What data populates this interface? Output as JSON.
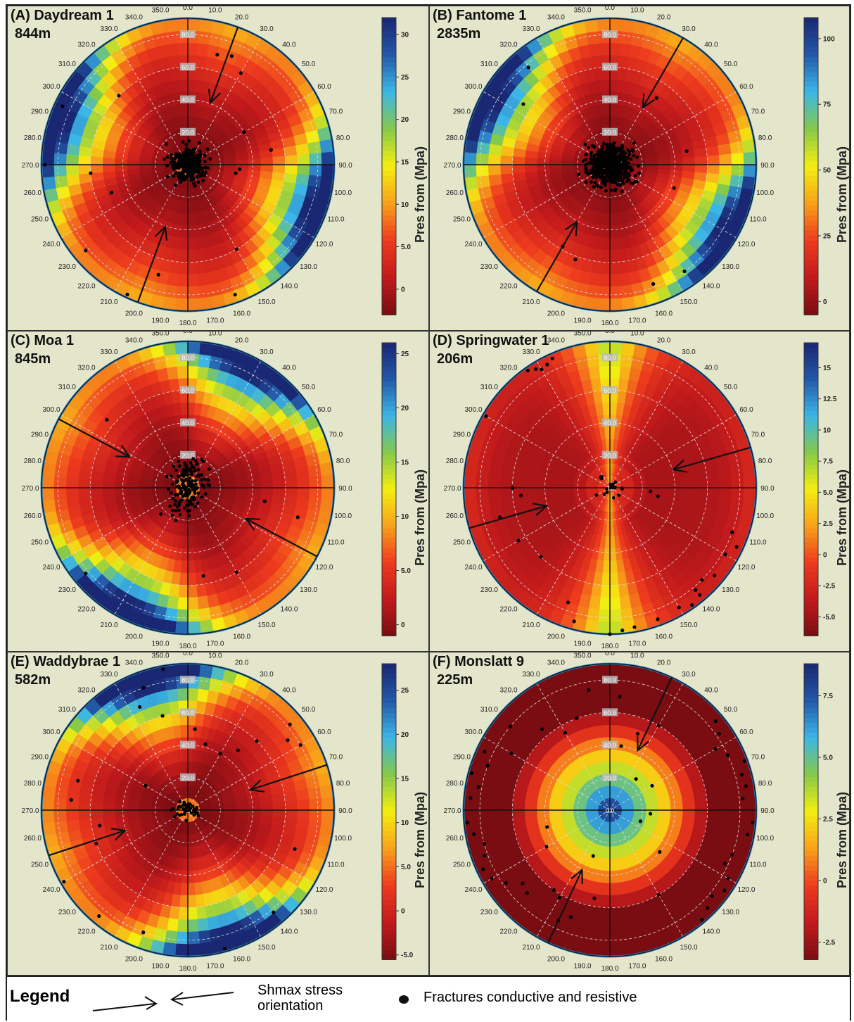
{
  "legend": {
    "title": "Legend",
    "arrow_label": "Shmax stress orientation",
    "dot_label": "Fractures conductive and resistive"
  },
  "colormap": [
    "#7a0d12",
    "#c21a1c",
    "#ee3b1e",
    "#f8a21a",
    "#f4ee10",
    "#86c94a",
    "#3cb6e6",
    "#2358a8",
    "#1a2772"
  ],
  "chart_data": [
    {
      "type": "polar-heatmap",
      "title": "(A) Daydream 1",
      "depth": "844m",
      "colorbar_label": "Pres from (Mpa)",
      "colorbar_ticks": [
        "30",
        "25",
        "20",
        "15",
        "10",
        "5.0",
        "0"
      ],
      "colorbar_range": [
        -3,
        32
      ],
      "radial_labels": [
        "20.0",
        "40.0",
        "60.0",
        "80.0"
      ],
      "azimuth_labels": [
        "0.0",
        "10.0",
        "20.0",
        "30.0",
        "40.0",
        "50.0",
        "60.0",
        "70.0",
        "80.0",
        "90.0",
        "100.0",
        "110.0",
        "120.0",
        "130.0",
        "140.0",
        "150.0",
        "160.0",
        "170.0",
        "180.0",
        "190.0",
        "200.0",
        "210.0",
        "220.0",
        "230.0",
        "240.0",
        "250.0",
        "260.0",
        "270.0",
        "280.0",
        "290.0",
        "300.0",
        "310.0",
        "320.0",
        "330.0",
        "340.0",
        "350.0"
      ],
      "center_label": "0.0",
      "shmax_azimuth": 20,
      "pattern": "bilobe",
      "field_axis": 20,
      "fractures": {
        "cluster_count": 320,
        "cluster_spread": 24,
        "cluster_azimuth_bias": null,
        "scattered": [
          [
            15,
            70
          ],
          [
            22,
            72
          ],
          [
            30,
            65
          ],
          [
            60,
            40
          ],
          [
            80,
            52
          ],
          [
            95,
            32
          ],
          [
            100,
            30
          ],
          [
            150,
            60
          ],
          [
            160,
            85
          ],
          [
            195,
            70
          ],
          [
            205,
            88
          ],
          [
            230,
            82
          ],
          [
            250,
            50
          ],
          [
            265,
            60
          ],
          [
            270,
            88
          ],
          [
            295,
            85
          ],
          [
            290,
            10
          ],
          [
            315,
            60
          ]
        ]
      }
    },
    {
      "type": "polar-heatmap",
      "title": "(B) Fantome 1",
      "depth": "2835m",
      "colorbar_label": "Pres from (Mpa)",
      "colorbar_ticks": [
        "100",
        "75",
        "50",
        "25",
        "0"
      ],
      "colorbar_range": [
        -5,
        108
      ],
      "radial_labels": [
        "20.0",
        "40.0",
        "60.0",
        "80.0"
      ],
      "azimuth_labels": [
        "0.0",
        "10.0",
        "20.0",
        "30.0",
        "40.0",
        "50.0",
        "60.0",
        "70.0",
        "80.0",
        "90.0",
        "100.0",
        "110.0",
        "120.0",
        "130.0",
        "140.0",
        "150.0",
        "160.0",
        "170.0",
        "180.0",
        "190.0",
        "200.0",
        "210.0",
        "220.0",
        "230.0",
        "240.0",
        "250.0",
        "260.0",
        "270.0",
        "280.0",
        "290.0",
        "300.0",
        "310.0",
        "320.0",
        "330.0",
        "340.0",
        "350.0"
      ],
      "center_label": "0.0",
      "shmax_azimuth": 30,
      "pattern": "bilobe",
      "field_axis": 30,
      "fractures": {
        "cluster_count": 560,
        "cluster_spread": 30,
        "cluster_azimuth_bias": null,
        "scattered": [
          [
            305,
            65
          ],
          [
            320,
            78
          ],
          [
            80,
            48
          ],
          [
            110,
            42
          ],
          [
            145,
            80
          ],
          [
            160,
            78
          ],
          [
            200,
            62
          ],
          [
            210,
            58
          ],
          [
            35,
            50
          ]
        ]
      }
    },
    {
      "type": "polar-heatmap",
      "title": "(C) Moa 1",
      "depth": "845m",
      "colorbar_label": "Pres from (Mpa)",
      "colorbar_ticks": [
        "25",
        "20",
        "15",
        "10",
        "5.0",
        "0"
      ],
      "colorbar_range": [
        -1,
        26
      ],
      "radial_labels": [
        "20.0",
        "40.0",
        "60.0",
        "80.0"
      ],
      "azimuth_labels": [
        "0.0",
        "10.0",
        "20.0",
        "30.0",
        "40.0",
        "50.0",
        "60.0",
        "70.0",
        "80.0",
        "90.0",
        "100.0",
        "110.0",
        "120.0",
        "130.0",
        "140.0",
        "150.0",
        "160.0",
        "170.0",
        "180.0",
        "190.0",
        "200.0",
        "210.0",
        "220.0",
        "230.0",
        "240.0",
        "250.0",
        "260.0",
        "270.0",
        "280.0",
        "290.0",
        "300.0",
        "310.0",
        "320.0",
        "330.0",
        "340.0",
        "350.0"
      ],
      "center_label": "0.0",
      "shmax_azimuth": 118,
      "pattern": "bilobe",
      "field_axis": 118,
      "fractures": {
        "cluster_count": 150,
        "cluster_spread": 40,
        "cluster_azimuth_bias": 28,
        "scattered": [
          [
            310,
            65
          ],
          [
            230,
            82
          ],
          [
            170,
            55
          ],
          [
            150,
            60
          ],
          [
            105,
            70
          ],
          [
            100,
            48
          ]
        ]
      }
    },
    {
      "type": "polar-heatmap",
      "title": "(D) Springwater 1",
      "depth": "206m",
      "colorbar_label": "Pres from (Mpa)",
      "colorbar_ticks": [
        "15",
        "12.5",
        "10",
        "7.5",
        "5.0",
        "2.5",
        "0",
        "-2.5",
        "-5.0"
      ],
      "colorbar_range": [
        -6.5,
        17
      ],
      "radial_labels": [
        "20.0",
        "40.0",
        "60.0",
        "80.0"
      ],
      "azimuth_labels": [
        "0.0",
        "10.0",
        "20.0",
        "30.0",
        "40.0",
        "50.0",
        "60.0",
        "70.0",
        "80.0",
        "90.0",
        "100.0",
        "110.0",
        "120.0",
        "130.0",
        "140.0",
        "150.0",
        "160.0",
        "170.0",
        "180.0",
        "190.0",
        "200.0",
        "210.0",
        "220.0",
        "230.0",
        "240.0",
        "250.0",
        "260.0",
        "270.0",
        "280.0",
        "290.0",
        "300.0",
        "310.0",
        "320.0",
        "330.0",
        "340.0",
        "350.0"
      ],
      "center_label": "0.0",
      "shmax_azimuth": 74,
      "pattern": "quadrant",
      "field_axis": 90,
      "fractures": {
        "cluster_count": 18,
        "cluster_spread": 25,
        "cluster_azimuth_bias": null,
        "scattered": [
          [
            325,
            88
          ],
          [
            328,
            86
          ],
          [
            330,
            84
          ],
          [
            333,
            85
          ],
          [
            336,
            87
          ],
          [
            300,
            88
          ],
          [
            270,
            60
          ],
          [
            265,
            55
          ],
          [
            255,
            70
          ],
          [
            240,
            65
          ],
          [
            225,
            60
          ],
          [
            200,
            75
          ],
          [
            195,
            85
          ],
          [
            180,
            90
          ],
          [
            175,
            88
          ],
          [
            170,
            87
          ],
          [
            160,
            86
          ],
          [
            150,
            85
          ],
          [
            145,
            88
          ],
          [
            140,
            86
          ],
          [
            140,
            82
          ],
          [
            135,
            80
          ],
          [
            130,
            84
          ],
          [
            120,
            82
          ],
          [
            115,
            86
          ],
          [
            110,
            80
          ],
          [
            100,
            30
          ],
          [
            95,
            25
          ]
        ]
      }
    },
    {
      "type": "polar-heatmap",
      "title": "(E) Waddybrae 1",
      "depth": "582m",
      "colorbar_label": "Pres from (Mpa)",
      "colorbar_ticks": [
        "25",
        "20",
        "15",
        "10",
        "5.0",
        "0",
        "-5.0"
      ],
      "colorbar_range": [
        -5.5,
        28
      ],
      "radial_labels": [
        "20.0",
        "40.0",
        "60.0",
        "80.0"
      ],
      "azimuth_labels": [
        "0.0",
        "10.0",
        "20.0",
        "30.0",
        "40.0",
        "50.0",
        "60.0",
        "70.0",
        "80.0",
        "90.0",
        "100.0",
        "110.0",
        "120.0",
        "130.0",
        "140.0",
        "150.0",
        "160.0",
        "170.0",
        "180.0",
        "190.0",
        "200.0",
        "210.0",
        "220.0",
        "230.0",
        "240.0",
        "250.0",
        "260.0",
        "270.0",
        "280.0",
        "290.0",
        "300.0",
        "310.0",
        "320.0",
        "330.0",
        "340.0",
        "350.0"
      ],
      "center_label": "0.0",
      "shmax_azimuth": 72,
      "pattern": "bilobe",
      "field_axis": 72,
      "fractures": {
        "cluster_count": 40,
        "cluster_spread": 22,
        "cluster_azimuth_bias": 270,
        "scattered": [
          [
            350,
            88
          ],
          [
            340,
            80
          ],
          [
            335,
            70
          ],
          [
            345,
            60
          ],
          [
            5,
            50
          ],
          [
            15,
            42
          ],
          [
            30,
            40
          ],
          [
            40,
            48
          ],
          [
            45,
            60
          ],
          [
            55,
            75
          ],
          [
            60,
            80
          ],
          [
            50,
            82
          ],
          [
            110,
            70
          ],
          [
            140,
            82
          ],
          [
            165,
            88
          ],
          [
            200,
            80
          ],
          [
            220,
            85
          ],
          [
            240,
            88
          ],
          [
            250,
            60
          ],
          [
            260,
            55
          ],
          [
            275,
            72
          ],
          [
            285,
            70
          ],
          [
            300,
            30
          ]
        ]
      }
    },
    {
      "type": "polar-heatmap",
      "title": "(F) Monslatt 9",
      "depth": "225m",
      "colorbar_label": "Pres from (Mpa)",
      "colorbar_ticks": [
        "7.5",
        "5.0",
        "2.5",
        "0",
        "-2.5"
      ],
      "colorbar_range": [
        -3.2,
        8.8
      ],
      "radial_labels": [
        "20.0",
        "40.0",
        "60.0",
        "80.0"
      ],
      "azimuth_labels": [
        "0.0",
        "10.0",
        "20.0",
        "30.0",
        "40.0",
        "50.0",
        "60.0",
        "70.0",
        "80.0",
        "90.0",
        "100.0",
        "110.0",
        "120.0",
        "130.0",
        "140.0",
        "150.0",
        "160.0",
        "170.0",
        "180.0",
        "190.0",
        "200.0",
        "210.0",
        "220.0",
        "230.0",
        "240.0",
        "250.0",
        "260.0",
        "270.0",
        "280.0",
        "290.0",
        "300.0",
        "310.0",
        "320.0",
        "330.0",
        "340.0",
        "350.0"
      ],
      "center_label": "0.0",
      "shmax_azimuth": 25,
      "pattern": "radial",
      "field_axis": 0,
      "fractures": {
        "cluster_count": 0,
        "cluster_spread": 0,
        "cluster_azimuth_bias": null,
        "scattered": [
          [
            295,
            85
          ],
          [
            290,
            80
          ],
          [
            285,
            88
          ],
          [
            280,
            82
          ],
          [
            275,
            86
          ],
          [
            265,
            88
          ],
          [
            260,
            85
          ],
          [
            255,
            80
          ],
          [
            250,
            82
          ],
          [
            245,
            86
          ],
          [
            240,
            84
          ],
          [
            235,
            78
          ],
          [
            230,
            70
          ],
          [
            225,
            72
          ],
          [
            215,
            60
          ],
          [
            210,
            62
          ],
          [
            205,
            75
          ],
          [
            200,
            70
          ],
          [
            190,
            55
          ],
          [
            150,
            60
          ],
          [
            140,
            88
          ],
          [
            135,
            85
          ],
          [
            130,
            82
          ],
          [
            125,
            86
          ],
          [
            120,
            84
          ],
          [
            115,
            78
          ],
          [
            110,
            80
          ],
          [
            100,
            86
          ],
          [
            95,
            88
          ],
          [
            85,
            82
          ],
          [
            80,
            85
          ],
          [
            75,
            84
          ],
          [
            70,
            88
          ],
          [
            65,
            80
          ],
          [
            60,
            75
          ],
          [
            55,
            82
          ],
          [
            50,
            85
          ],
          [
            30,
            60
          ],
          [
            20,
            50
          ],
          [
            10,
            40
          ],
          [
            5,
            70
          ],
          [
            350,
            75
          ],
          [
            340,
            60
          ],
          [
            330,
            55
          ],
          [
            320,
            65
          ],
          [
            310,
            80
          ],
          [
            300,
            70
          ],
          [
            255,
            40
          ],
          [
            240,
            45
          ],
          [
            200,
            30
          ],
          [
            130,
            40
          ],
          [
            110,
            20
          ],
          [
            95,
            25
          ],
          [
            60,
            30
          ],
          [
            40,
            25
          ]
        ]
      }
    }
  ]
}
